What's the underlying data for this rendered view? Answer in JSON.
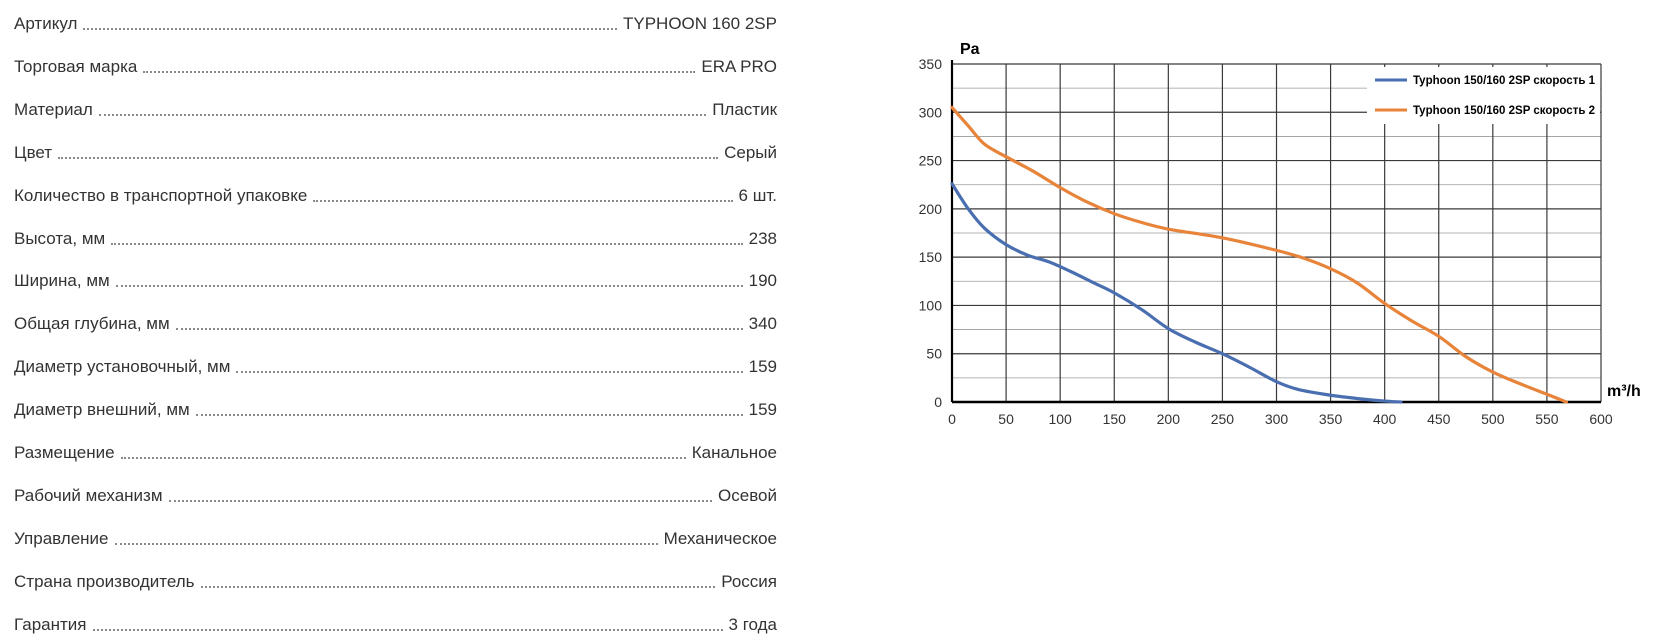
{
  "specs": [
    {
      "label": "Артикул",
      "value": "TYPHOON 160 2SP"
    },
    {
      "label": "Торговая марка",
      "value": "ERA PRO"
    },
    {
      "label": "Материал",
      "value": "Пластик"
    },
    {
      "label": "Цвет",
      "value": "Серый"
    },
    {
      "label": "Количество в транспортной упаковке",
      "value": "6 шт."
    },
    {
      "label": "Высота, мм",
      "value": "238"
    },
    {
      "label": "Ширина, мм",
      "value": "190"
    },
    {
      "label": "Общая глубина, мм",
      "value": "340"
    },
    {
      "label": "Диаметр установочный, мм",
      "value": "159"
    },
    {
      "label": "Диаметр внешний, мм",
      "value": "159"
    },
    {
      "label": "Размещение",
      "value": "Канальное"
    },
    {
      "label": "Рабочий механизм",
      "value": "Осевой"
    },
    {
      "label": "Управление",
      "value": "Механическое"
    },
    {
      "label": "Страна производитель",
      "value": "Россия"
    },
    {
      "label": "Гарантия",
      "value": "3 года"
    }
  ],
  "chart_data": {
    "type": "line",
    "title": "",
    "xlabel": "m³/h",
    "ylabel": "Pa",
    "xlim": [
      0,
      600
    ],
    "ylim": [
      0,
      350
    ],
    "xticks": [
      0,
      50,
      100,
      150,
      200,
      250,
      300,
      350,
      400,
      450,
      500,
      550,
      600
    ],
    "yticks": [
      0,
      50,
      100,
      150,
      200,
      250,
      300,
      350
    ],
    "grid": true,
    "legend_position": "top-right",
    "series": [
      {
        "name": "Typhoon 150/160 2SP скорость 1",
        "color": "#4a6fb0",
        "x": [
          0,
          15,
          30,
          50,
          70,
          90,
          110,
          130,
          150,
          175,
          200,
          225,
          250,
          275,
          300,
          320,
          350,
          380,
          400,
          415
        ],
        "y": [
          226,
          200,
          180,
          163,
          152,
          145,
          135,
          124,
          113,
          96,
          76,
          62,
          50,
          36,
          21,
          13,
          7,
          3,
          1,
          0
        ]
      },
      {
        "name": "Typhoon 150/160 2SP скорость 2",
        "color": "#e8833a",
        "x": [
          0,
          15,
          30,
          50,
          75,
          100,
          125,
          150,
          175,
          200,
          250,
          300,
          325,
          350,
          375,
          400,
          425,
          450,
          475,
          500,
          525,
          550,
          568
        ],
        "y": [
          305,
          286,
          267,
          254,
          239,
          222,
          207,
          195,
          186,
          179,
          170,
          157,
          149,
          138,
          123,
          102,
          84,
          68,
          47,
          31,
          19,
          8,
          0
        ]
      }
    ]
  }
}
